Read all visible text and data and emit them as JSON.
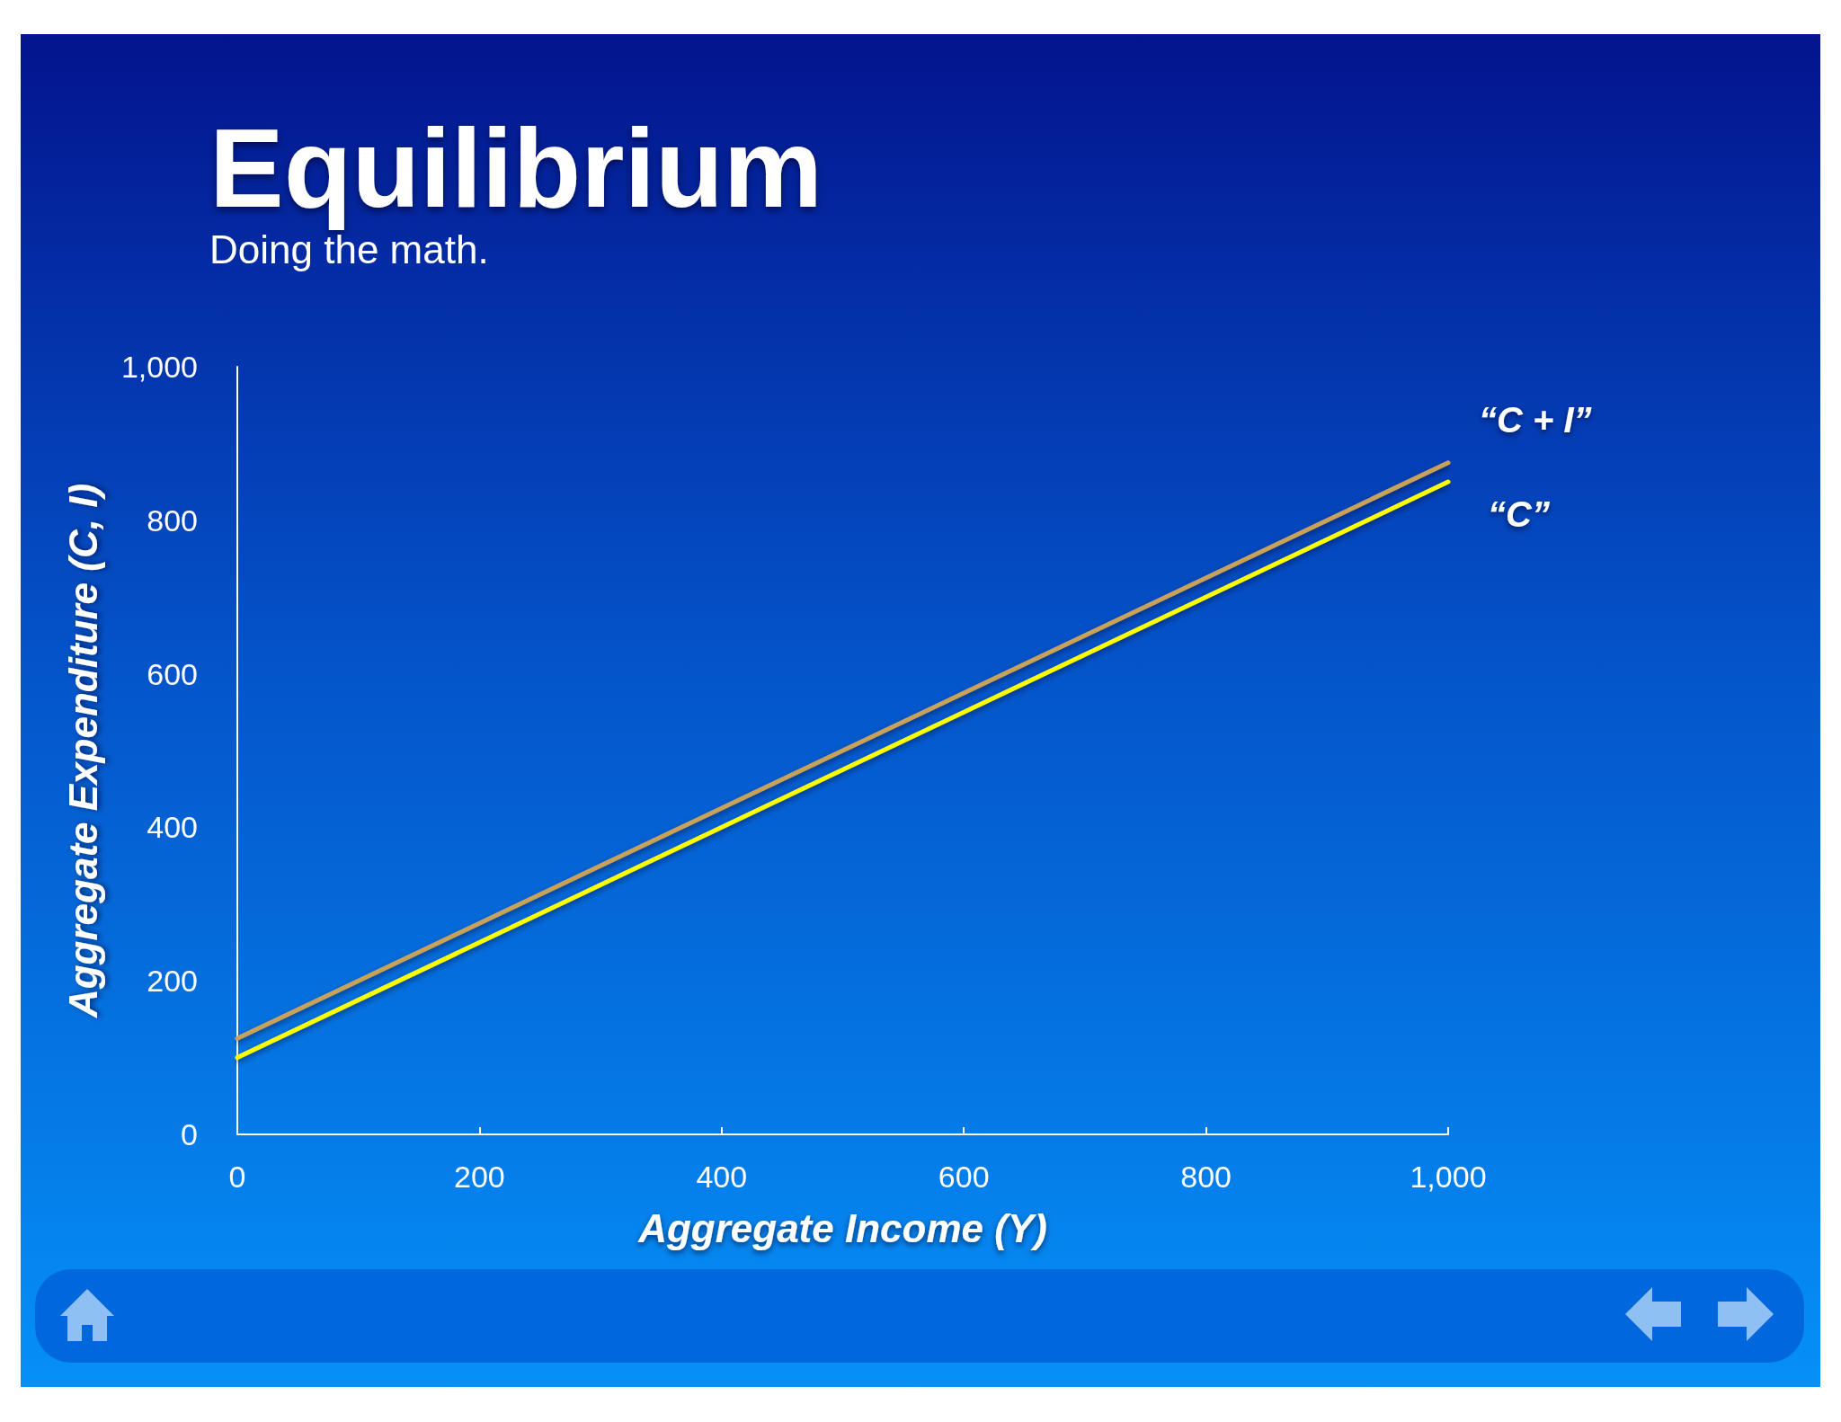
{
  "chart_data": {
    "type": "line",
    "title": "Equilibrium",
    "subtitle": "Doing the math.",
    "xlabel": "Aggregate Income (Y)",
    "ylabel": "Aggregate Expenditure (C, I)",
    "x": [
      0,
      1000
    ],
    "series": [
      {
        "name": "“C + I”",
        "color": "#c9a25a",
        "values": [
          125,
          875
        ]
      },
      {
        "name": "“C”",
        "color": "#ffff00",
        "values": [
          100,
          850
        ]
      }
    ],
    "xlim": [
      0,
      1000
    ],
    "xticks": [
      0,
      200,
      400,
      600,
      800,
      {
        "value": 1000,
        "label": "1,000"
      }
    ],
    "ylim": [
      0,
      1000
    ],
    "yticks": [
      0,
      200,
      400,
      600,
      800,
      {
        "value": 1000,
        "label": "1,000"
      }
    ],
    "grid": false,
    "legend": false,
    "marker": "none",
    "line_style": "solid"
  }
}
